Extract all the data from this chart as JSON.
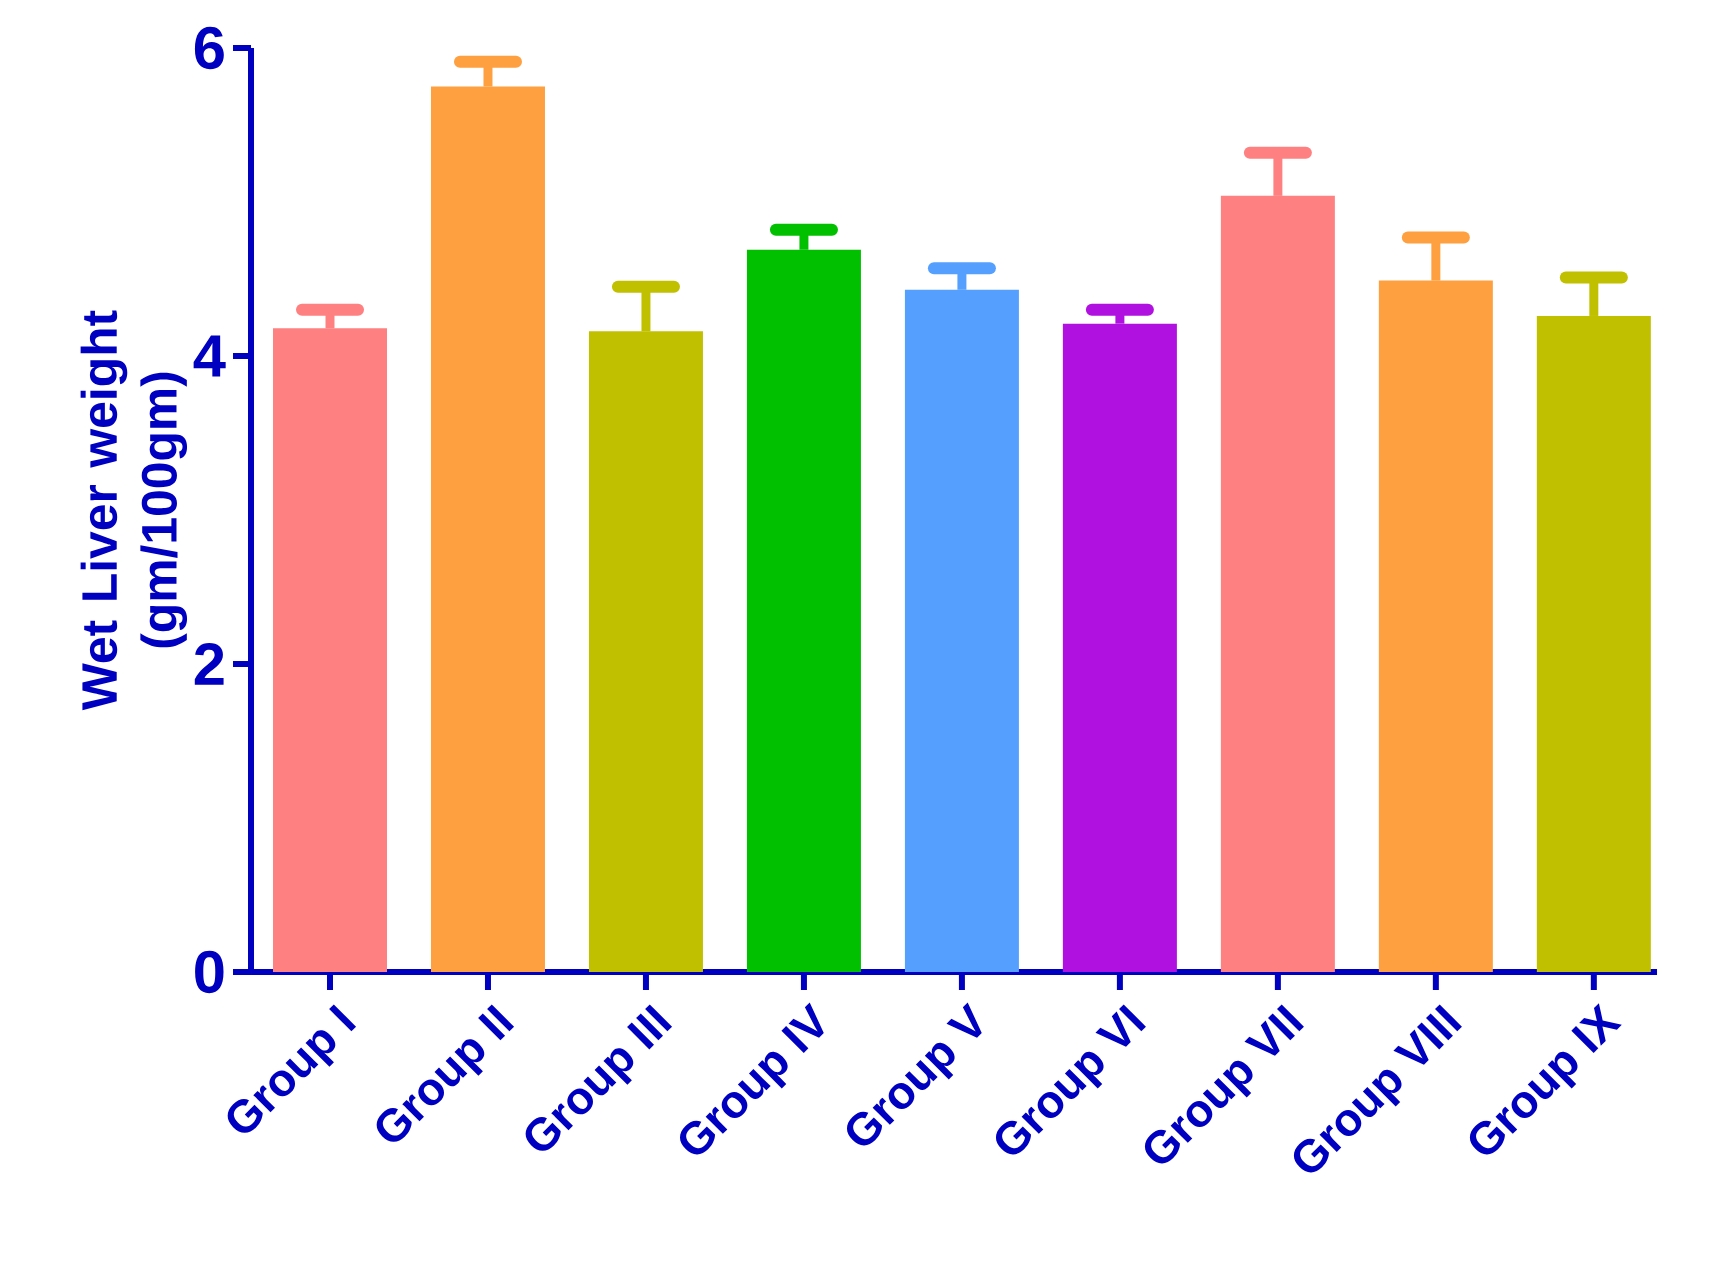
{
  "chart_data": {
    "type": "bar",
    "ylabel": "Wet Liver weight (gm/100gm)",
    "categories": [
      "Group I",
      "Group II",
      "Group III",
      "Group IV",
      "Group V",
      "Group VI",
      "Group VII",
      "Group VIII",
      "Group IX"
    ],
    "values": [
      4.18,
      5.75,
      4.16,
      4.69,
      4.43,
      4.21,
      5.04,
      4.49,
      4.26
    ],
    "errors": [
      [
        4.18,
        4.3
      ],
      [
        5.75,
        5.91
      ],
      [
        4.16,
        4.45
      ],
      [
        4.69,
        4.82
      ],
      [
        4.43,
        4.57
      ],
      [
        4.21,
        4.3
      ],
      [
        5.04,
        5.32
      ],
      [
        4.49,
        4.77
      ],
      [
        4.26,
        4.51
      ]
    ],
    "colors": [
      "#ff8080",
      "#ffa040",
      "#c0c000",
      "#00c000",
      "#55a0ff",
      "#b010e0",
      "#ff8080",
      "#ffa040",
      "#c0c000"
    ],
    "ylim": [
      0,
      6
    ],
    "yticks": [
      0,
      2,
      4,
      6
    ]
  }
}
